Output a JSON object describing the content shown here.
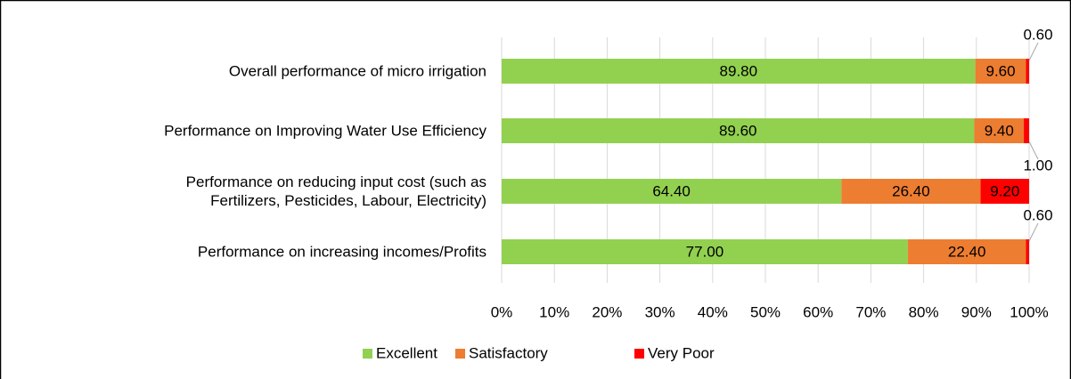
{
  "chart_data": {
    "type": "stacked-bar-horizontal",
    "categories": [
      "Overall performance of micro irrigation",
      "Performance on Improving Water Use Efficiency",
      "Performance on reducing input cost (such as\nFertilizers, Pesticides, Labour, Electricity)",
      "Performance on increasing incomes/Profits"
    ],
    "series": [
      {
        "name": "Excellent",
        "color": "#92d050",
        "values": [
          89.8,
          89.6,
          64.4,
          77.0
        ],
        "value_labels": [
          "89.80",
          "89.60",
          "64.40",
          "77.00"
        ]
      },
      {
        "name": "Satisfactory",
        "color": "#ed7d31",
        "values": [
          9.6,
          9.4,
          26.4,
          22.4
        ],
        "value_labels": [
          "9.60",
          "9.40",
          "26.40",
          "22.40"
        ]
      },
      {
        "name": "Very Poor",
        "color": "#ff0000",
        "values": [
          0.6,
          1.0,
          9.2,
          0.6
        ],
        "value_labels": [
          "0.60",
          "1.00",
          "9.20",
          "0.60"
        ]
      }
    ],
    "xlim": [
      0,
      100
    ],
    "xticks": [
      {
        "value": 0,
        "label": "0%"
      },
      {
        "value": 10,
        "label": "10%"
      },
      {
        "value": 20,
        "label": "20%"
      },
      {
        "value": 30,
        "label": "30%"
      },
      {
        "value": 40,
        "label": "40%"
      },
      {
        "value": 50,
        "label": "50%"
      },
      {
        "value": 60,
        "label": "60%"
      },
      {
        "value": 70,
        "label": "70%"
      },
      {
        "value": 80,
        "label": "80%"
      },
      {
        "value": 90,
        "label": "90%"
      },
      {
        "value": 100,
        "label": "100%"
      }
    ],
    "grid": true,
    "legend": "bottom"
  }
}
